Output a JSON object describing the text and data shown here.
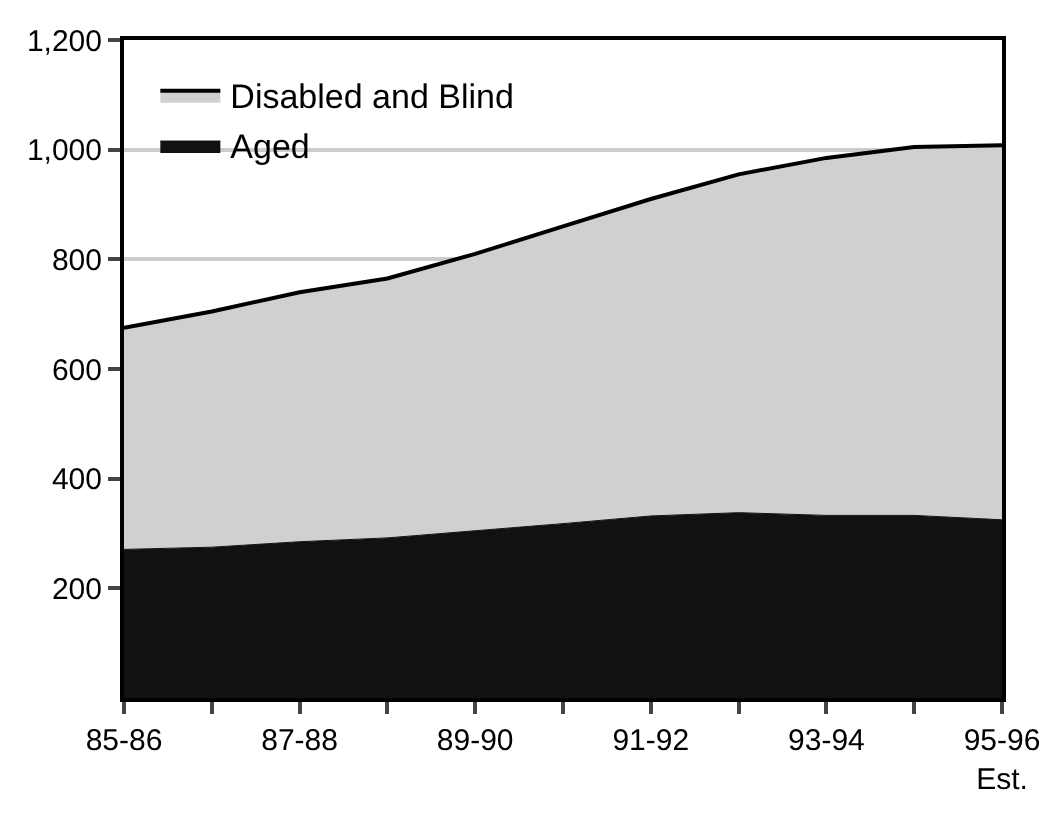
{
  "chart_data": {
    "type": "area",
    "stacked": true,
    "categories": [
      "85-86",
      null,
      "87-88",
      null,
      "89-90",
      null,
      "91-92",
      null,
      "93-94",
      null,
      "95-96\nEst."
    ],
    "series": [
      {
        "name": "Aged",
        "color": "#111111",
        "values": [
          271,
          275,
          285,
          292,
          305,
          318,
          332,
          338,
          333,
          333,
          325
        ]
      },
      {
        "name": "Disabled and Blind",
        "color": "#d0d0d0",
        "values": [
          404,
          430,
          455,
          473,
          505,
          542,
          578,
          617,
          652,
          672,
          683
        ]
      }
    ],
    "ylim": [
      0,
      1200
    ],
    "yticks": [
      200,
      400,
      600,
      800,
      {
        "value": 1000,
        "label": "1,000"
      },
      {
        "value": 1200,
        "label": "1,200"
      }
    ],
    "grid": "y",
    "legend": "top left"
  }
}
